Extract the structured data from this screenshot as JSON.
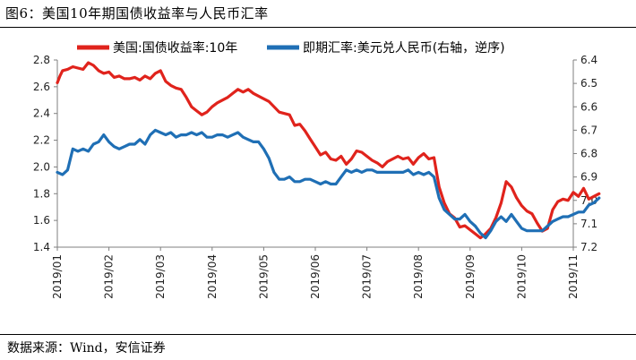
{
  "figure": {
    "title": "图6：美国10年期国债收益率与人民币汇率",
    "source": "数据来源：Wind，安信证券"
  },
  "chart_data": {
    "type": "line",
    "title": "美国10年期国债收益率与人民币汇率",
    "y_left": {
      "ticks": [
        1.4,
        1.6,
        1.8,
        2.0,
        2.2,
        2.4,
        2.6,
        2.8
      ],
      "range": [
        1.4,
        2.8
      ]
    },
    "y_right": {
      "ticks": [
        6.4,
        6.5,
        6.6,
        6.7,
        6.8,
        6.9,
        7.0,
        7.1,
        7.2
      ],
      "range": [
        6.4,
        7.2
      ],
      "inverted": true
    },
    "x_ticks": [
      "2019/01",
      "2019/02",
      "2019/03",
      "2019/04",
      "2019/05",
      "2019/06",
      "2019/07",
      "2019/08",
      "2019/09",
      "2019/10",
      "2019/11"
    ],
    "legend_position": "top",
    "series": [
      {
        "name": "美国:国债收益率:10年",
        "axis": "left",
        "color": "#e0231c",
        "points": [
          [
            0.0,
            2.63
          ],
          [
            0.05,
            2.68
          ],
          [
            0.1,
            2.72
          ],
          [
            0.2,
            2.73
          ],
          [
            0.3,
            2.75
          ],
          [
            0.4,
            2.74
          ],
          [
            0.5,
            2.73
          ],
          [
            0.6,
            2.78
          ],
          [
            0.7,
            2.76
          ],
          [
            0.8,
            2.72
          ],
          [
            0.9,
            2.7
          ],
          [
            1.0,
            2.71
          ],
          [
            1.1,
            2.67
          ],
          [
            1.2,
            2.68
          ],
          [
            1.3,
            2.66
          ],
          [
            1.4,
            2.66
          ],
          [
            1.5,
            2.67
          ],
          [
            1.6,
            2.65
          ],
          [
            1.7,
            2.68
          ],
          [
            1.8,
            2.66
          ],
          [
            1.9,
            2.7
          ],
          [
            2.0,
            2.72
          ],
          [
            2.1,
            2.64
          ],
          [
            2.2,
            2.61
          ],
          [
            2.3,
            2.59
          ],
          [
            2.4,
            2.58
          ],
          [
            2.5,
            2.52
          ],
          [
            2.6,
            2.45
          ],
          [
            2.7,
            2.42
          ],
          [
            2.8,
            2.39
          ],
          [
            2.9,
            2.41
          ],
          [
            3.0,
            2.45
          ],
          [
            3.1,
            2.48
          ],
          [
            3.2,
            2.5
          ],
          [
            3.3,
            2.52
          ],
          [
            3.4,
            2.55
          ],
          [
            3.5,
            2.58
          ],
          [
            3.6,
            2.56
          ],
          [
            3.7,
            2.58
          ],
          [
            3.8,
            2.55
          ],
          [
            3.9,
            2.53
          ],
          [
            4.0,
            2.51
          ],
          [
            4.1,
            2.49
          ],
          [
            4.2,
            2.45
          ],
          [
            4.3,
            2.41
          ],
          [
            4.4,
            2.4
          ],
          [
            4.5,
            2.39
          ],
          [
            4.6,
            2.31
          ],
          [
            4.7,
            2.32
          ],
          [
            4.8,
            2.27
          ],
          [
            4.9,
            2.21
          ],
          [
            5.0,
            2.15
          ],
          [
            5.1,
            2.09
          ],
          [
            5.2,
            2.11
          ],
          [
            5.3,
            2.06
          ],
          [
            5.4,
            2.05
          ],
          [
            5.5,
            2.08
          ],
          [
            5.6,
            2.02
          ],
          [
            5.7,
            2.06
          ],
          [
            5.8,
            2.12
          ],
          [
            5.9,
            2.11
          ],
          [
            6.0,
            2.08
          ],
          [
            6.1,
            2.05
          ],
          [
            6.2,
            2.03
          ],
          [
            6.3,
            2.0
          ],
          [
            6.4,
            2.04
          ],
          [
            6.5,
            2.06
          ],
          [
            6.6,
            2.08
          ],
          [
            6.7,
            2.06
          ],
          [
            6.8,
            2.07
          ],
          [
            6.9,
            2.02
          ],
          [
            7.0,
            2.07
          ],
          [
            7.1,
            2.1
          ],
          [
            7.2,
            2.06
          ],
          [
            7.3,
            2.07
          ],
          [
            7.4,
            1.85
          ],
          [
            7.5,
            1.73
          ],
          [
            7.6,
            1.65
          ],
          [
            7.7,
            1.62
          ],
          [
            7.8,
            1.55
          ],
          [
            7.9,
            1.56
          ],
          [
            8.0,
            1.53
          ],
          [
            8.1,
            1.5
          ],
          [
            8.2,
            1.47
          ],
          [
            8.3,
            1.5
          ],
          [
            8.4,
            1.54
          ],
          [
            8.5,
            1.62
          ],
          [
            8.6,
            1.73
          ],
          [
            8.7,
            1.89
          ],
          [
            8.8,
            1.85
          ],
          [
            8.9,
            1.77
          ],
          [
            9.0,
            1.71
          ],
          [
            9.1,
            1.67
          ],
          [
            9.2,
            1.65
          ],
          [
            9.3,
            1.58
          ],
          [
            9.4,
            1.52
          ],
          [
            9.5,
            1.54
          ],
          [
            9.6,
            1.68
          ],
          [
            9.7,
            1.74
          ],
          [
            9.8,
            1.76
          ],
          [
            9.9,
            1.75
          ],
          [
            10.0,
            1.81
          ],
          [
            10.1,
            1.78
          ],
          [
            10.2,
            1.84
          ],
          [
            10.3,
            1.76
          ],
          [
            10.4,
            1.78
          ],
          [
            10.5,
            1.8
          ]
        ]
      },
      {
        "name": "即期汇率:美元兑人民币(右轴，逆序)",
        "axis": "right",
        "color": "#1f6fb5",
        "points": [
          [
            0.0,
            6.88
          ],
          [
            0.1,
            6.89
          ],
          [
            0.2,
            6.87
          ],
          [
            0.3,
            6.78
          ],
          [
            0.4,
            6.79
          ],
          [
            0.5,
            6.78
          ],
          [
            0.6,
            6.79
          ],
          [
            0.7,
            6.76
          ],
          [
            0.8,
            6.75
          ],
          [
            0.9,
            6.72
          ],
          [
            1.0,
            6.75
          ],
          [
            1.1,
            6.77
          ],
          [
            1.2,
            6.78
          ],
          [
            1.3,
            6.77
          ],
          [
            1.4,
            6.76
          ],
          [
            1.5,
            6.76
          ],
          [
            1.6,
            6.74
          ],
          [
            1.7,
            6.76
          ],
          [
            1.8,
            6.72
          ],
          [
            1.9,
            6.7
          ],
          [
            2.0,
            6.71
          ],
          [
            2.1,
            6.72
          ],
          [
            2.2,
            6.71
          ],
          [
            2.3,
            6.73
          ],
          [
            2.4,
            6.72
          ],
          [
            2.5,
            6.72
          ],
          [
            2.6,
            6.71
          ],
          [
            2.7,
            6.72
          ],
          [
            2.8,
            6.71
          ],
          [
            2.9,
            6.73
          ],
          [
            3.0,
            6.73
          ],
          [
            3.1,
            6.72
          ],
          [
            3.2,
            6.72
          ],
          [
            3.3,
            6.73
          ],
          [
            3.4,
            6.72
          ],
          [
            3.5,
            6.71
          ],
          [
            3.6,
            6.73
          ],
          [
            3.7,
            6.74
          ],
          [
            3.8,
            6.75
          ],
          [
            3.9,
            6.75
          ],
          [
            4.0,
            6.78
          ],
          [
            4.1,
            6.82
          ],
          [
            4.2,
            6.88
          ],
          [
            4.3,
            6.91
          ],
          [
            4.4,
            6.91
          ],
          [
            4.5,
            6.9
          ],
          [
            4.6,
            6.92
          ],
          [
            4.7,
            6.92
          ],
          [
            4.8,
            6.91
          ],
          [
            4.9,
            6.91
          ],
          [
            5.0,
            6.92
          ],
          [
            5.1,
            6.93
          ],
          [
            5.2,
            6.92
          ],
          [
            5.3,
            6.93
          ],
          [
            5.4,
            6.93
          ],
          [
            5.5,
            6.9
          ],
          [
            5.6,
            6.87
          ],
          [
            5.7,
            6.88
          ],
          [
            5.8,
            6.87
          ],
          [
            5.9,
            6.88
          ],
          [
            6.0,
            6.87
          ],
          [
            6.1,
            6.87
          ],
          [
            6.2,
            6.88
          ],
          [
            6.3,
            6.88
          ],
          [
            6.4,
            6.88
          ],
          [
            6.5,
            6.88
          ],
          [
            6.6,
            6.88
          ],
          [
            6.7,
            6.88
          ],
          [
            6.8,
            6.87
          ],
          [
            6.9,
            6.89
          ],
          [
            7.0,
            6.88
          ],
          [
            7.1,
            6.89
          ],
          [
            7.2,
            6.88
          ],
          [
            7.3,
            6.9
          ],
          [
            7.4,
            6.99
          ],
          [
            7.5,
            7.04
          ],
          [
            7.6,
            7.06
          ],
          [
            7.7,
            7.08
          ],
          [
            7.8,
            7.08
          ],
          [
            7.9,
            7.06
          ],
          [
            8.0,
            7.09
          ],
          [
            8.1,
            7.11
          ],
          [
            8.2,
            7.14
          ],
          [
            8.3,
            7.16
          ],
          [
            8.4,
            7.13
          ],
          [
            8.5,
            7.09
          ],
          [
            8.6,
            7.07
          ],
          [
            8.7,
            7.09
          ],
          [
            8.8,
            7.06
          ],
          [
            8.9,
            7.09
          ],
          [
            9.0,
            7.12
          ],
          [
            9.1,
            7.13
          ],
          [
            9.2,
            7.13
          ],
          [
            9.3,
            7.13
          ],
          [
            9.4,
            7.13
          ],
          [
            9.5,
            7.11
          ],
          [
            9.6,
            7.09
          ],
          [
            9.7,
            7.08
          ],
          [
            9.8,
            7.07
          ],
          [
            9.9,
            7.07
          ],
          [
            10.0,
            7.06
          ],
          [
            10.1,
            7.05
          ],
          [
            10.2,
            7.05
          ],
          [
            10.3,
            7.02
          ],
          [
            10.4,
            7.01
          ],
          [
            10.5,
            6.99
          ]
        ]
      }
    ]
  }
}
